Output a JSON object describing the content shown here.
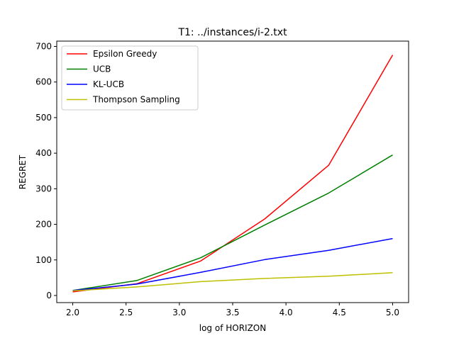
{
  "chart_data": {
    "type": "line",
    "title": "T1: ../instances/i-2.txt",
    "xlabel": "log of HORIZON",
    "ylabel": "REGRET",
    "xlim": [
      1.85,
      5.15
    ],
    "ylim": [
      -20,
      715
    ],
    "xticks": [
      2.0,
      2.5,
      3.0,
      3.5,
      4.0,
      4.5,
      5.0
    ],
    "xtick_labels": [
      "2.0",
      "2.5",
      "3.0",
      "3.5",
      "4.0",
      "4.5",
      "5.0"
    ],
    "yticks": [
      0,
      100,
      200,
      300,
      400,
      500,
      600,
      700
    ],
    "ytick_labels": [
      "0",
      "100",
      "200",
      "300",
      "400",
      "500",
      "600",
      "700"
    ],
    "grid": false,
    "legend_position": "upper-left",
    "x": [
      2.0,
      2.6,
      3.2,
      3.8,
      4.4,
      5.0
    ],
    "series": [
      {
        "name": "Epsilon Greedy",
        "color": "#e41a1c",
        "stroke": "#ff0000",
        "values": [
          10,
          33,
          97,
          215,
          366,
          676
        ]
      },
      {
        "name": "UCB",
        "color": "#008000",
        "stroke": "#008000",
        "values": [
          14,
          42,
          106,
          198,
          288,
          395
        ]
      },
      {
        "name": "KL-UCB",
        "color": "#0000ff",
        "stroke": "#0000ff",
        "values": [
          14,
          32,
          65,
          101,
          127,
          160
        ]
      },
      {
        "name": "Thompson Sampling",
        "color": "#bfbf00",
        "stroke": "#bfbf00",
        "values": [
          13,
          24,
          39,
          48,
          54,
          64
        ]
      }
    ]
  }
}
